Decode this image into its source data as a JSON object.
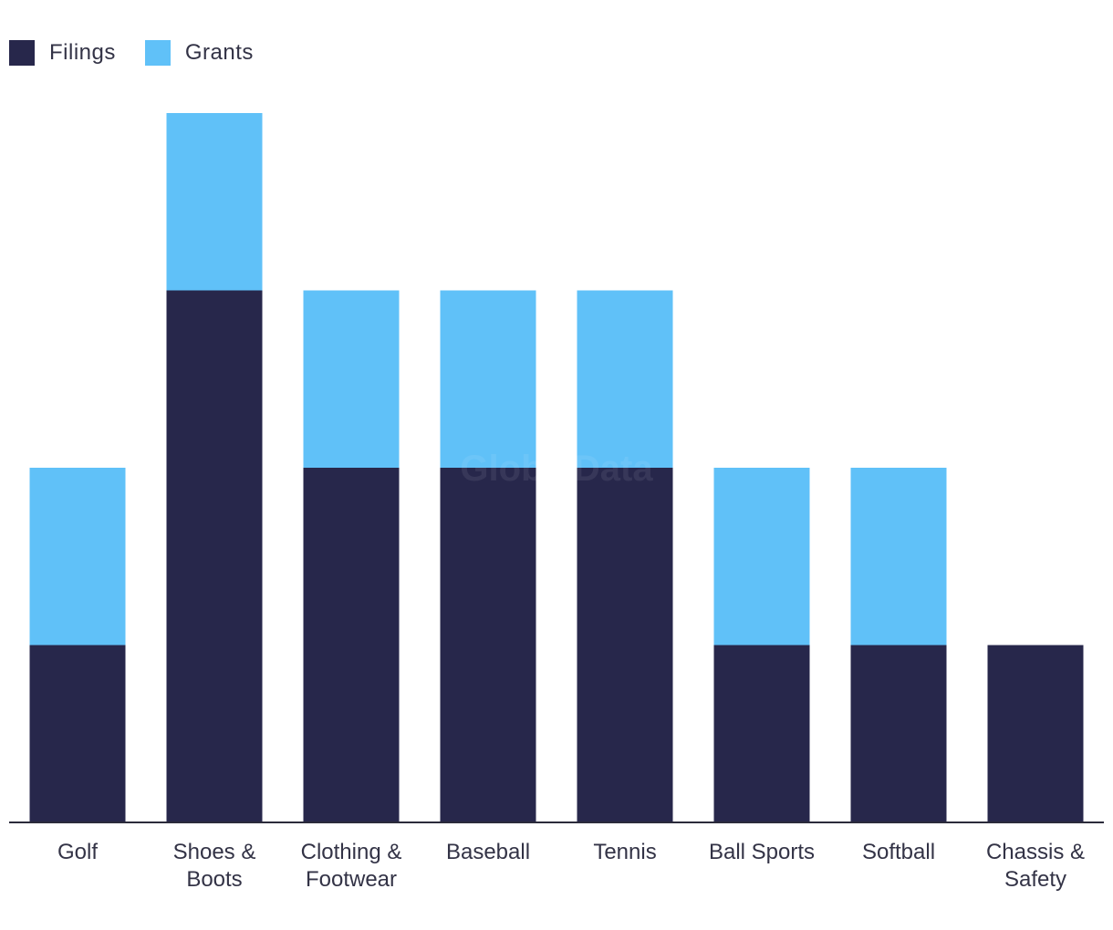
{
  "chart_data": {
    "type": "bar",
    "stacked": true,
    "categories": [
      [
        "Golf"
      ],
      [
        "Shoes &",
        "Boots"
      ],
      [
        "Clothing &",
        "Footwear"
      ],
      [
        "Baseball"
      ],
      [
        "Tennis"
      ],
      [
        "Ball Sports"
      ],
      [
        "Softball"
      ],
      [
        "Chassis &",
        "Safety"
      ]
    ],
    "series": [
      {
        "name": "Filings",
        "color": "#27274b",
        "values": [
          1,
          3,
          2,
          2,
          2,
          1,
          1,
          1
        ]
      },
      {
        "name": "Grants",
        "color": "#60c1f8",
        "values": [
          1,
          1,
          1,
          1,
          1,
          1,
          1,
          0
        ]
      }
    ],
    "ylim": [
      0,
      4
    ],
    "grid": false,
    "legend_position": "top-left",
    "axis_color": "#2b2b3b",
    "label_color": "#333346"
  },
  "watermark": "GlobalData"
}
